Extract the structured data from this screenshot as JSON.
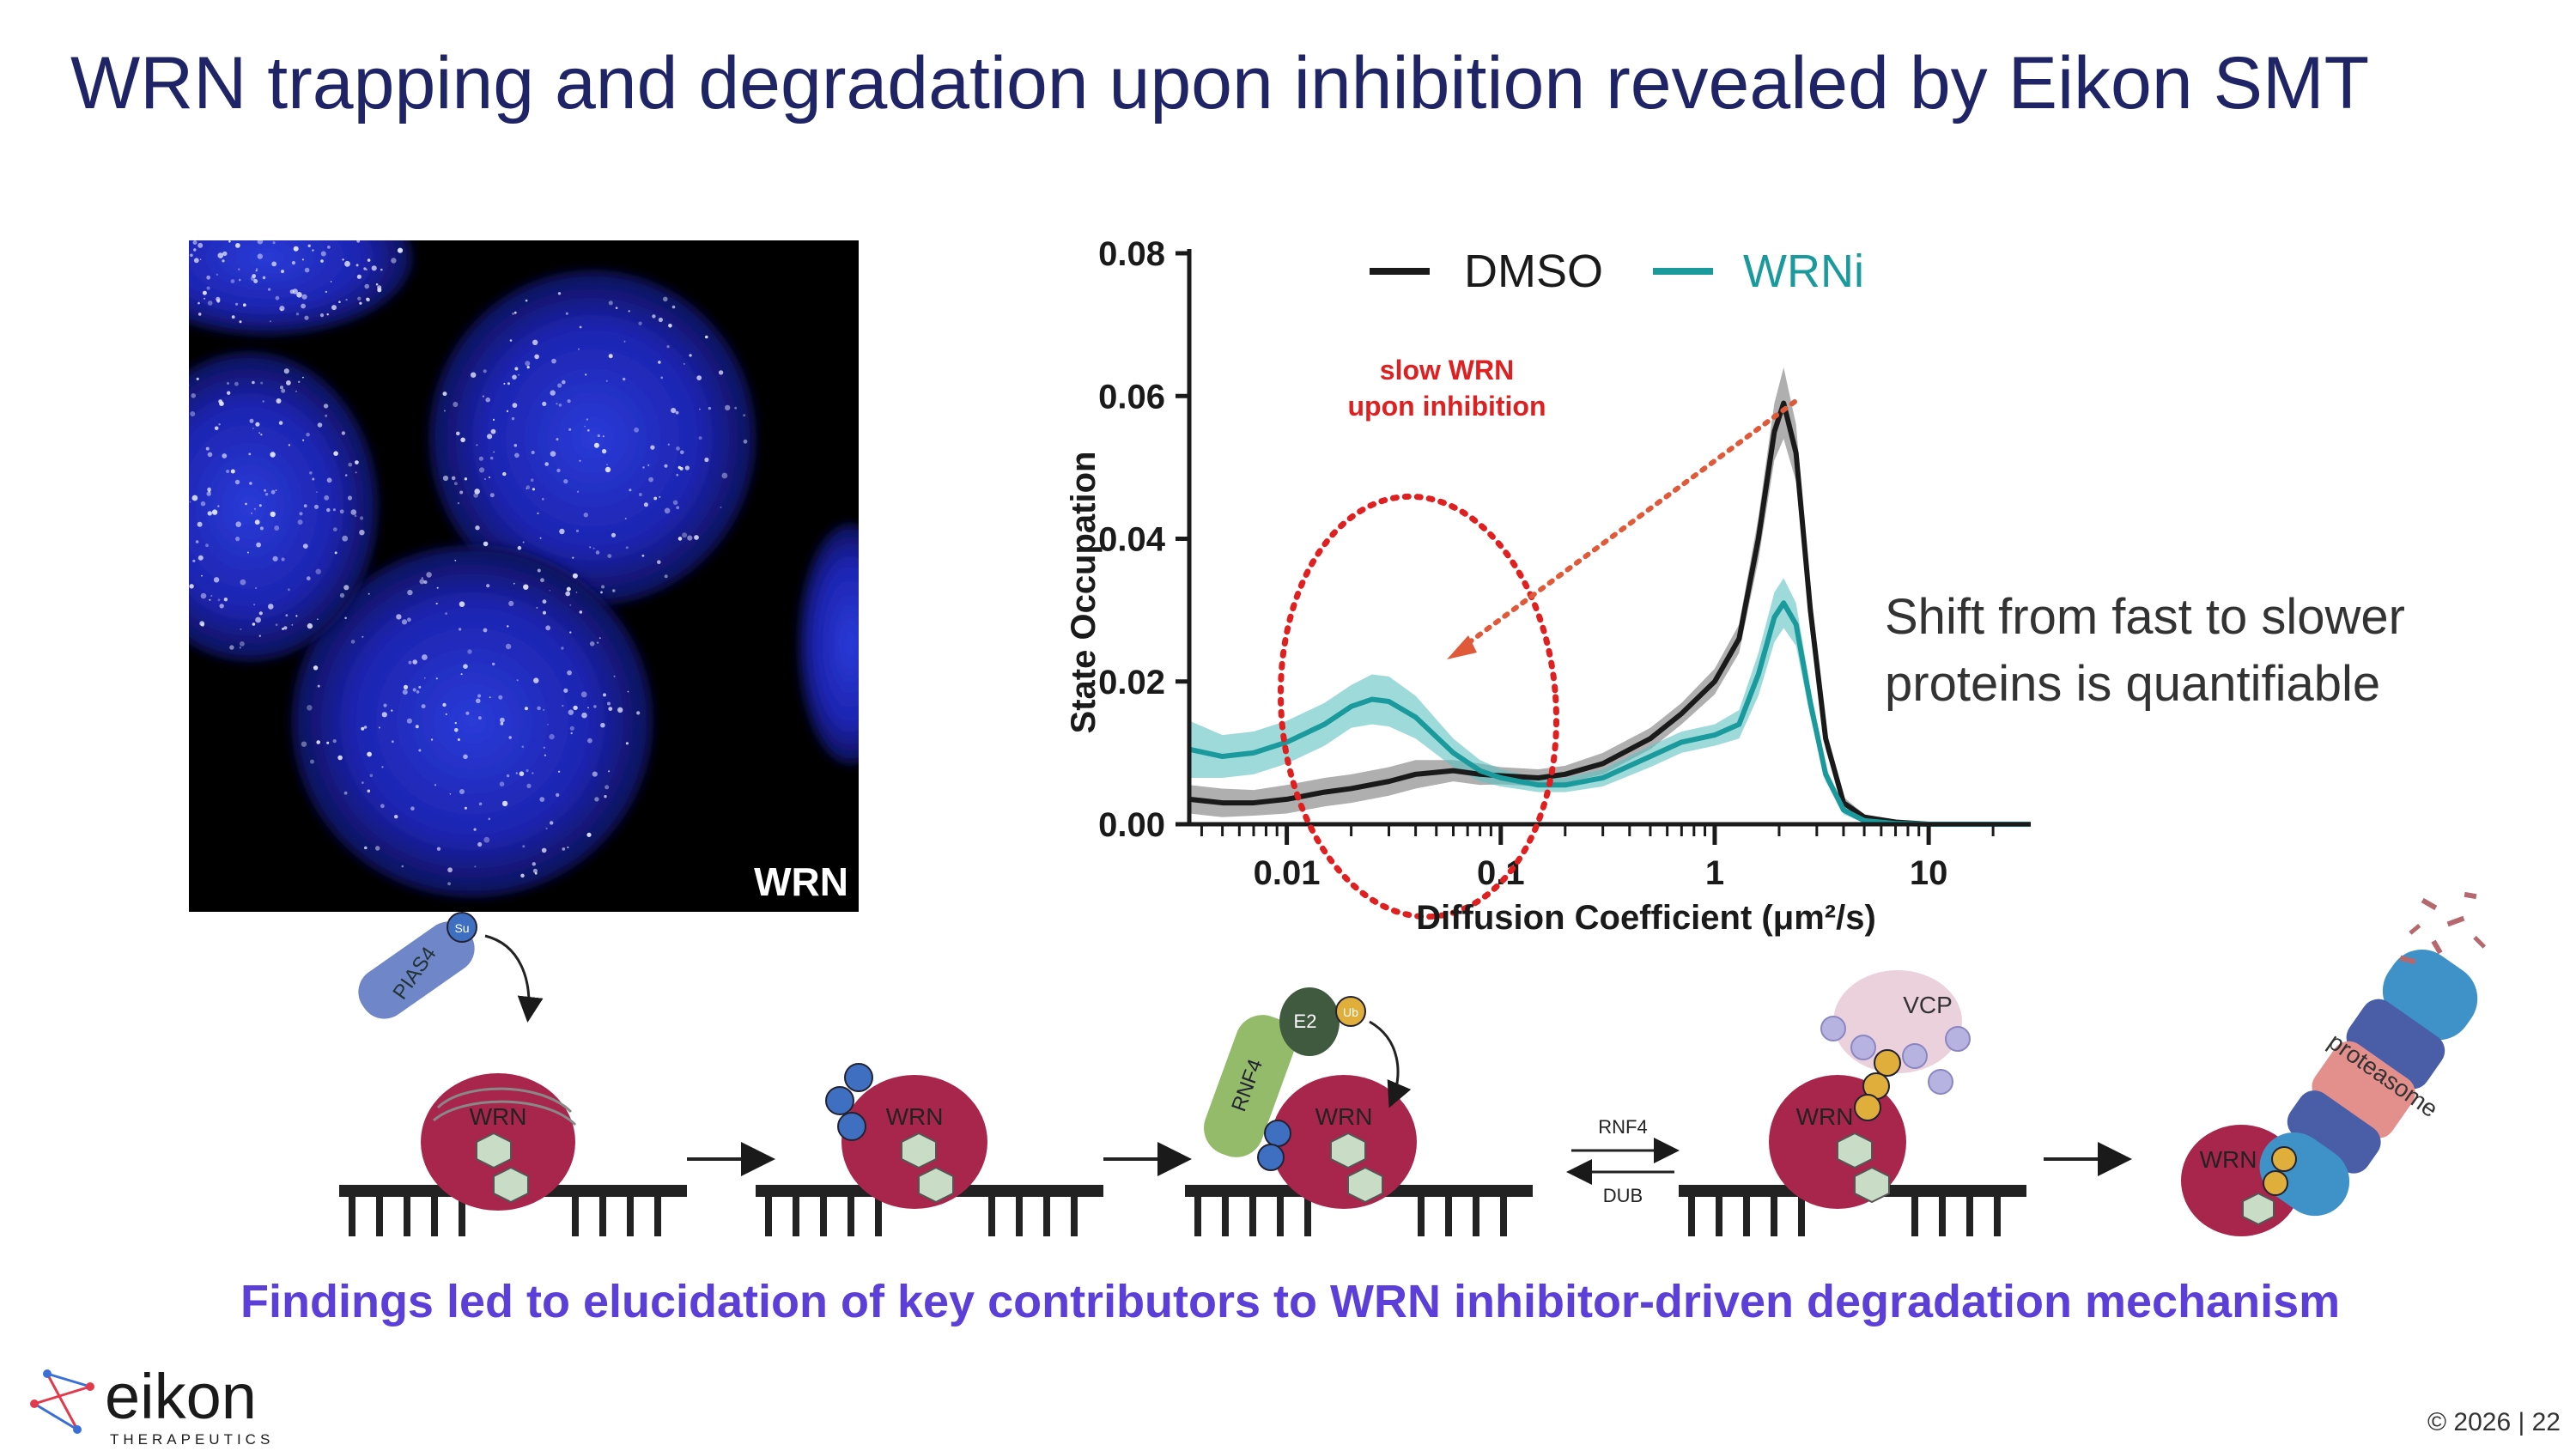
{
  "slide": {
    "title": "WRN trapping and degradation upon inhibition revealed by Eikon SMT",
    "image_label": "WRN",
    "callout_line1": "Shift from fast to slower",
    "callout_line2": "proteins is quantifiable",
    "findings": "Findings led to elucidation of key contributors to WRN inhibitor-driven degradation mechanism",
    "copyright": "© 2026 | 22",
    "logo_word": "eikon",
    "logo_sub": "THERAPEUTICS"
  },
  "chart_data": {
    "type": "line",
    "xscale": "log",
    "xlim": [
      0.0035,
      30
    ],
    "ylim": [
      0,
      0.08
    ],
    "xlabel": "Diffusion Coefficient (μm²/s)",
    "ylabel": "State Occupation",
    "xticks": [
      0.01,
      0.1,
      1,
      10
    ],
    "xtick_labels": [
      "0.01",
      "0.1",
      "1",
      "10"
    ],
    "yticks": [
      0,
      0.02,
      0.04,
      0.06,
      0.08
    ],
    "ytick_labels": [
      "0.00",
      "0.02",
      "0.04",
      "0.06",
      "0.08"
    ],
    "legend": "top",
    "annotation": {
      "line1": "slow WRN",
      "line2": "upon inhibition",
      "color": "#e02020"
    },
    "series": [
      {
        "name": "DMSO",
        "color": "#1a1a1a",
        "band_color": "#7a7a7a",
        "x": [
          0.0035,
          0.005,
          0.007,
          0.01,
          0.015,
          0.02,
          0.03,
          0.04,
          0.06,
          0.08,
          0.1,
          0.15,
          0.2,
          0.3,
          0.5,
          0.7,
          1.0,
          1.3,
          1.6,
          1.9,
          2.1,
          2.4,
          2.8,
          3.3,
          4.0,
          5.0,
          7.0,
          10,
          30
        ],
        "y": [
          0.0035,
          0.003,
          0.003,
          0.0035,
          0.0045,
          0.005,
          0.006,
          0.007,
          0.0075,
          0.007,
          0.0068,
          0.0065,
          0.007,
          0.0085,
          0.012,
          0.0155,
          0.02,
          0.026,
          0.04,
          0.055,
          0.059,
          0.052,
          0.03,
          0.012,
          0.003,
          0.001,
          0.0003,
          0.0,
          0.0
        ],
        "band": [
          0.002,
          0.002,
          0.0018,
          0.002,
          0.002,
          0.002,
          0.002,
          0.002,
          0.0015,
          0.0015,
          0.0012,
          0.0012,
          0.0012,
          0.0015,
          0.0015,
          0.0015,
          0.0018,
          0.002,
          0.003,
          0.004,
          0.005,
          0.004,
          0.003,
          0.0015,
          0.0008,
          0.0004,
          0.0002,
          0.0,
          0.0
        ]
      },
      {
        "name": "WRNi",
        "color": "#1a9a9c",
        "band_color": "#5fc1c1",
        "x": [
          0.0035,
          0.005,
          0.007,
          0.01,
          0.015,
          0.02,
          0.025,
          0.03,
          0.04,
          0.06,
          0.08,
          0.1,
          0.15,
          0.2,
          0.3,
          0.5,
          0.7,
          1.0,
          1.3,
          1.6,
          1.9,
          2.1,
          2.4,
          2.8,
          3.3,
          4.0,
          5.0,
          7.0,
          10,
          30
        ],
        "y": [
          0.0105,
          0.0095,
          0.01,
          0.0115,
          0.014,
          0.0165,
          0.0175,
          0.0172,
          0.015,
          0.01,
          0.0075,
          0.0065,
          0.0055,
          0.0055,
          0.0065,
          0.0095,
          0.0115,
          0.0125,
          0.014,
          0.021,
          0.029,
          0.031,
          0.028,
          0.017,
          0.007,
          0.002,
          0.0005,
          0.0001,
          0.0,
          0.0
        ],
        "band": [
          0.004,
          0.003,
          0.003,
          0.003,
          0.003,
          0.003,
          0.0035,
          0.0035,
          0.003,
          0.002,
          0.0015,
          0.0012,
          0.001,
          0.001,
          0.0012,
          0.0015,
          0.0015,
          0.0015,
          0.002,
          0.003,
          0.0035,
          0.0035,
          0.003,
          0.002,
          0.001,
          0.0006,
          0.0003,
          0.0001,
          0.0,
          0.0
        ]
      }
    ]
  },
  "mechanism": {
    "labels": {
      "pias4": "PIAS4",
      "wrn": "WRN",
      "su": "Su",
      "ub": "Ub",
      "e2": "E2",
      "rnf4": "RNF4",
      "vcp": "VCP",
      "proteasome": "proteasome",
      "arrow_top": "RNF4",
      "arrow_bottom": "DUB"
    }
  }
}
